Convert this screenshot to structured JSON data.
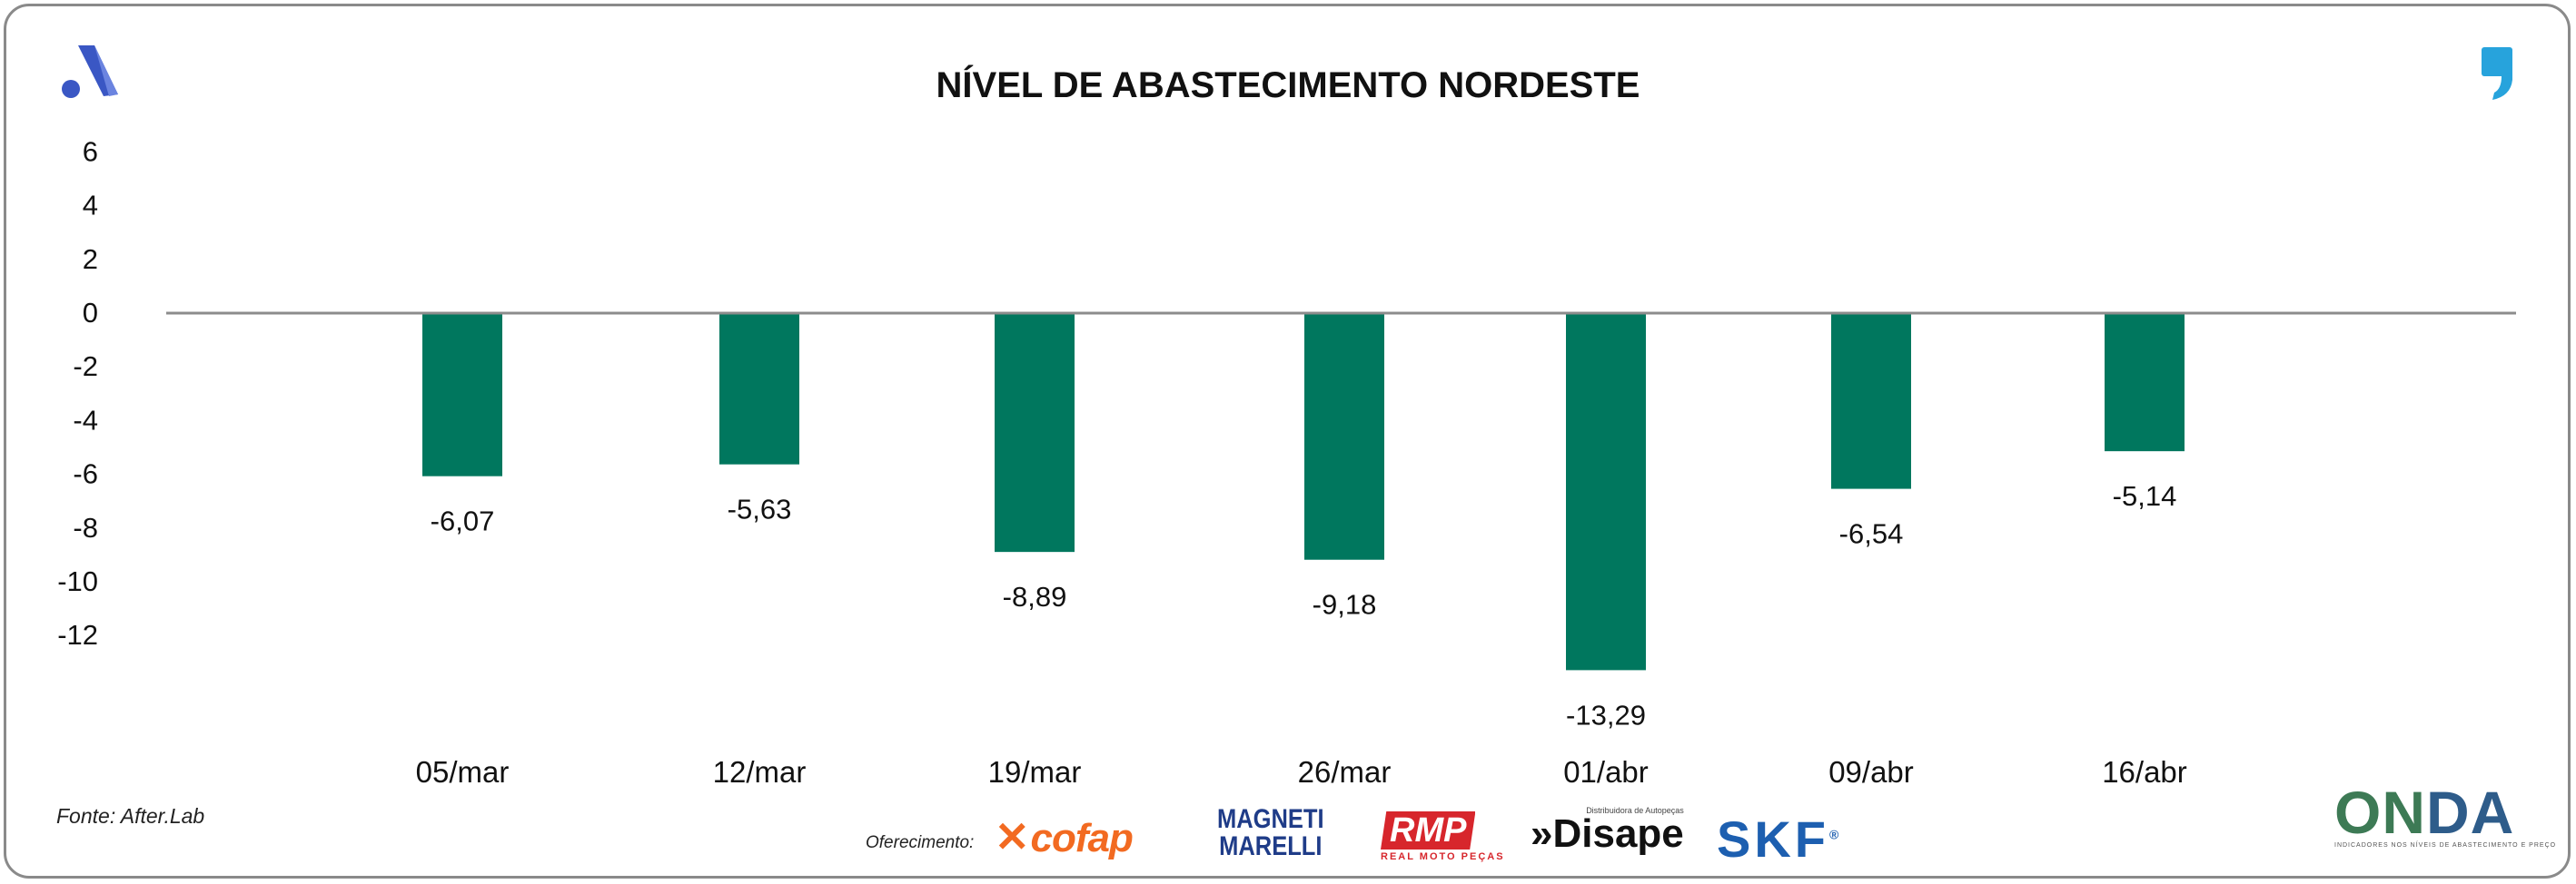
{
  "chart_data": {
    "type": "bar",
    "title": "NÍVEL DE ABASTECIMENTO NORDESTE",
    "categories": [
      "05/mar",
      "12/mar",
      "19/mar",
      "26/mar",
      "01/abr",
      "09/abr",
      "16/abr"
    ],
    "values": [
      -6.07,
      -5.63,
      -8.89,
      -9.18,
      -13.29,
      -6.54,
      -5.14
    ],
    "value_labels": [
      "-6,07",
      "-5,63",
      "-8,89",
      "-9,18",
      "-13,29",
      "-6,54",
      "-5,14"
    ],
    "y_ticks": [
      6,
      4,
      2,
      0,
      -2,
      -4,
      -6,
      -8,
      -10,
      -12
    ],
    "ylim": [
      -14,
      7
    ],
    "xlabel": "",
    "ylabel": "",
    "grid": false,
    "legend": "none",
    "bar_color": "#00775e",
    "zero_line_color": "#8c8c8c"
  },
  "footer": {
    "source": "Fonte: After.Lab",
    "offer_label": "Oferecimento:"
  },
  "sponsors": {
    "cofap": "cofap",
    "magneti_line1": "MAGNETI",
    "magneti_line2": "MARELLI",
    "rmp": "RMP",
    "rmp_sub": "REAL MOTO PEÇAS",
    "disape": "»Disape",
    "disape_small": "Distribuidora de Autopeças",
    "skf": "SKF",
    "skf_reg": "®"
  },
  "brand": {
    "onda_o": "ON",
    "onda_rest": "DA",
    "onda_sub": "INDICADORES NOS NÍVEIS DE ABASTECIMENTO E PREÇO",
    "logo_a_color": "#3a57c4",
    "quote_color": "#27a3dc"
  }
}
